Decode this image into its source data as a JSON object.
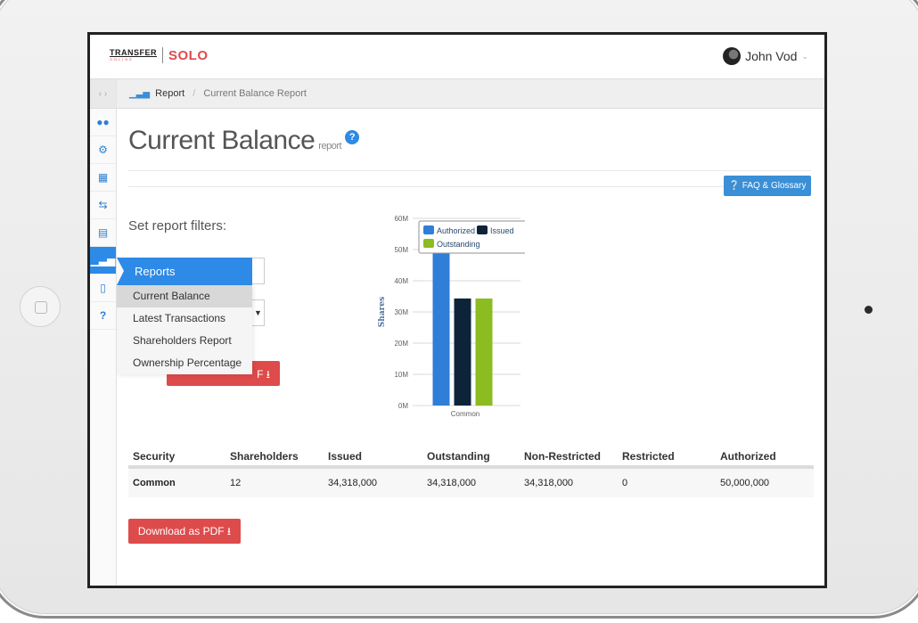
{
  "header": {
    "logo_line1": "TRANSFER",
    "logo_line2": "ONLINE",
    "logo_product": "SOLO",
    "user_name": "John Vod"
  },
  "breadcrumb": {
    "root": "Report",
    "separator": "/",
    "current": "Current Balance Report"
  },
  "page": {
    "title": "Current Balance",
    "subtitle": "report",
    "faq_label": "FAQ & Glossary",
    "filters_label": "Set report filters:",
    "hidden_button_suffix": "F",
    "download_label": "Download as PDF"
  },
  "sidebar": {
    "icons": [
      "users-icon",
      "gears-icon",
      "building-icon",
      "transfer-arrows-icon",
      "id-card-icon",
      "bar-chart-icon",
      "document-icon",
      "question-icon"
    ],
    "active_index": 5,
    "flyout": {
      "title": "Reports",
      "items": [
        "Current Balance",
        "Latest Transactions",
        "Shareholders Report",
        "Ownership Percentage"
      ],
      "selected_index": 0
    }
  },
  "chart_data": {
    "type": "bar",
    "categories": [
      "Common"
    ],
    "series": [
      {
        "name": "Authorized",
        "values": [
          50000000
        ],
        "color": "#2f7ed8"
      },
      {
        "name": "Issued",
        "values": [
          34318000
        ],
        "color": "#0d233a"
      },
      {
        "name": "Outstanding",
        "values": [
          34318000
        ],
        "color": "#8bbc21"
      }
    ],
    "title": "",
    "xlabel": "",
    "ylabel": "Shares",
    "ylim": [
      0,
      60000000
    ],
    "yticks": [
      "0M",
      "10M",
      "20M",
      "30M",
      "40M",
      "50M",
      "60M"
    ],
    "grid": true,
    "legend": "top"
  },
  "table": {
    "headers": [
      "Security",
      "Shareholders",
      "Issued",
      "Outstanding",
      "Non-Restricted",
      "Restricted",
      "Authorized"
    ],
    "rows": [
      [
        "Common",
        "12",
        "34,318,000",
        "34,318,000",
        "34,318,000",
        "0",
        "50,000,000"
      ]
    ]
  },
  "colors": {
    "accent_blue": "#2d8ae6",
    "danger_red": "#de4b4b",
    "brand_red": "#e04a4a"
  }
}
